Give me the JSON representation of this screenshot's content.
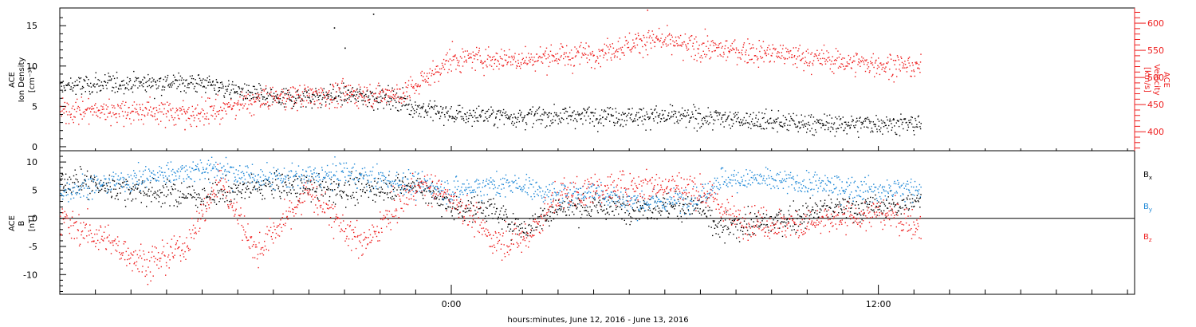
{
  "colors": {
    "black": "#000000",
    "red": "#ee1c1c",
    "blue": "#1a86d6"
  },
  "xaxis": {
    "label": "hours:minutes, June 12, 2016 - June 13, 2016",
    "range_hours": [
      -11,
      19.2
    ],
    "major_ticks": [
      0,
      12
    ],
    "tick_labels": [
      "0:00",
      "12:00"
    ],
    "minor_tick_step_hours": 1
  },
  "chart_data": [
    {
      "type": "scatter",
      "title": "",
      "ylabel_left": [
        "ACE",
        "Ion Density",
        "[cm⁻³]"
      ],
      "ylabel_right": [
        "ACE",
        "Velocity",
        "[km/s]"
      ],
      "ylim_left": [
        -0.5,
        17.2
      ],
      "yticks_left": [
        0,
        5,
        10,
        15
      ],
      "ylim_right": [
        365,
        628
      ],
      "yticks_right": [
        400,
        450,
        500,
        550,
        600
      ],
      "x_range_hours": [
        -11,
        13.2
      ],
      "series": [
        {
          "color": "black",
          "axis": "left",
          "x": [
            -11,
            -9,
            -7,
            -5,
            -3,
            -1.5,
            -1.1,
            0,
            2,
            4,
            6,
            8,
            9.5,
            11,
            12,
            13.2
          ],
          "y": [
            7.5,
            8,
            8,
            6,
            6.5,
            6,
            5,
            4,
            3.8,
            4,
            3.8,
            3.5,
            3,
            2.8,
            3,
            2.8
          ]
        },
        {
          "color": "red",
          "axis": "right",
          "x": [
            -11,
            -9,
            -7,
            -5,
            -3,
            -1.5,
            -1.1,
            0,
            2,
            4,
            5.5,
            7,
            9,
            11,
            12,
            13.2
          ],
          "y": [
            440,
            440,
            435,
            465,
            470,
            470,
            480,
            535,
            535,
            545,
            570,
            555,
            545,
            530,
            525,
            520
          ]
        }
      ],
      "annotations": [
        {
          "x": -2.2,
          "y": 16.5,
          "axis": "left",
          "color": "black"
        },
        {
          "x": -3.3,
          "y": 14.8,
          "axis": "left",
          "color": "black"
        },
        {
          "x": -3.0,
          "y": 12.3,
          "axis": "left",
          "color": "black"
        },
        {
          "x": 5.5,
          "y": 625,
          "axis": "right",
          "color": "red"
        },
        {
          "x": -7.5,
          "y": 405,
          "axis": "right",
          "color": "red"
        }
      ]
    },
    {
      "type": "scatter",
      "title": "",
      "ylabel": [
        "ACE",
        "B",
        "[nT]"
      ],
      "ylim": [
        -13.5,
        12
      ],
      "yticks": [
        -10,
        -5,
        0,
        5,
        10
      ],
      "zero_line": true,
      "x_range_hours": [
        -11,
        13.2
      ],
      "legend": [
        {
          "text": "B",
          "sub": "x",
          "color": "black"
        },
        {
          "text": "B",
          "sub": "y",
          "color": "blue"
        },
        {
          "text": "B",
          "sub": "z",
          "color": "red"
        }
      ],
      "series": [
        {
          "name": "Bx",
          "color": "black",
          "x": [
            -11,
            -9,
            -7,
            -5,
            -3,
            -1,
            0,
            1,
            2,
            3,
            4,
            5,
            7,
            7.5,
            8.5,
            9.5,
            10.5,
            12,
            13.2
          ],
          "y": [
            7,
            5,
            4,
            6,
            5,
            6,
            2,
            2,
            -2,
            2,
            2,
            2,
            2,
            -2,
            -1,
            0,
            2,
            2,
            3
          ]
        },
        {
          "name": "By",
          "color": "blue",
          "x": [
            -11,
            -9,
            -7,
            -5,
            -3,
            -1,
            0,
            1,
            2,
            3,
            4,
            5,
            6,
            7,
            7.5,
            8.5,
            9.5,
            10.5,
            12,
            13.2
          ],
          "y": [
            5,
            7,
            9,
            7,
            8,
            6,
            5,
            6,
            6,
            4,
            5,
            3,
            3,
            4,
            7,
            7,
            6.5,
            6,
            5,
            5.5
          ]
        },
        {
          "name": "Bz",
          "color": "red",
          "x": [
            -11,
            -10,
            -8.5,
            -7.5,
            -6.5,
            -5.5,
            -4,
            -2.5,
            -1,
            0,
            1.2,
            2,
            3,
            4,
            5,
            6,
            7,
            8,
            9,
            10,
            11,
            12,
            13.2
          ],
          "y": [
            0,
            -3,
            -8,
            -5,
            7,
            -6,
            5,
            -5,
            6,
            4,
            -4,
            -4,
            4,
            5,
            6,
            6,
            5,
            0,
            -1,
            -1,
            0,
            1,
            -1
          ]
        }
      ]
    }
  ]
}
